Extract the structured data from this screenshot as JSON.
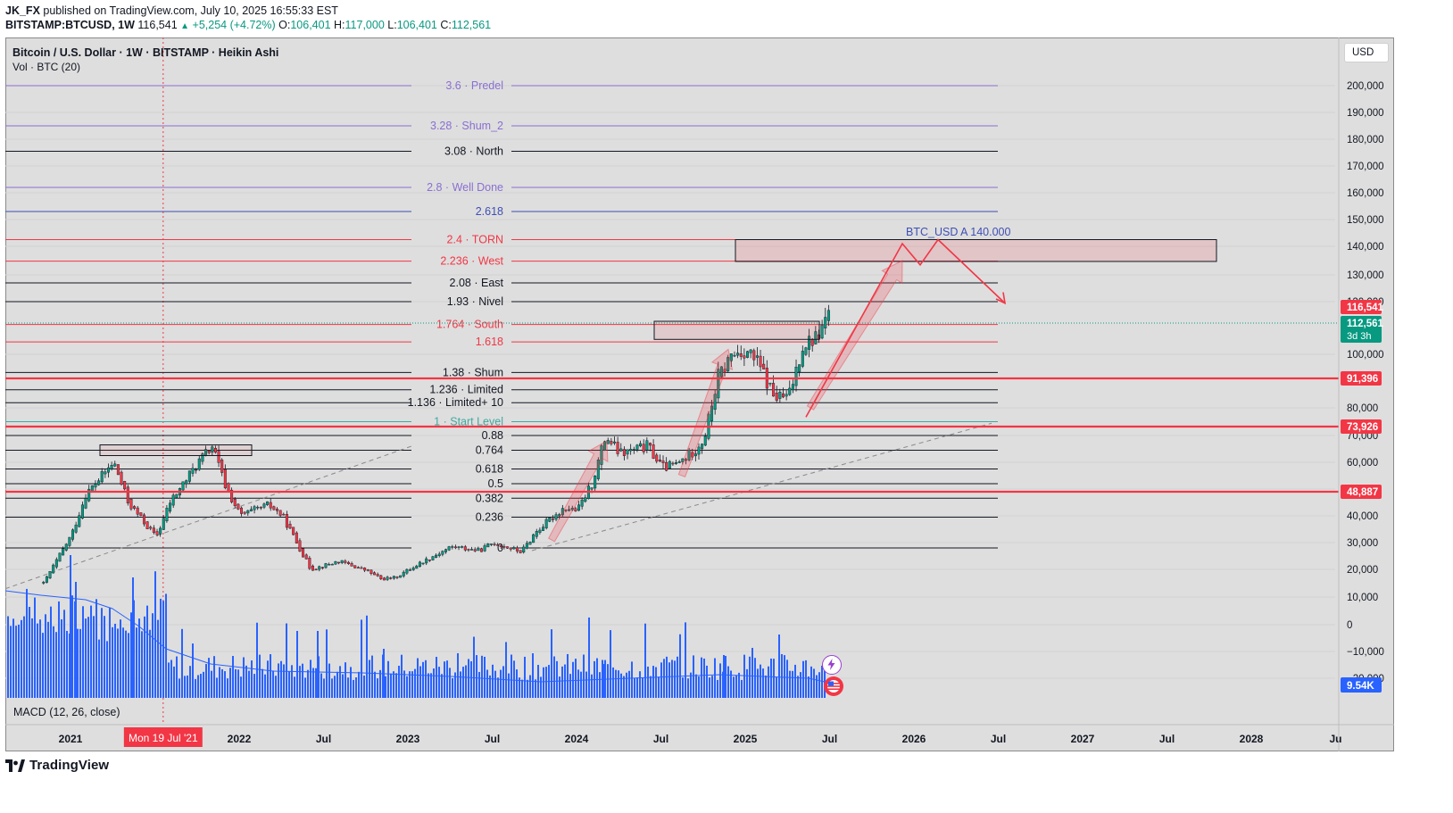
{
  "header": {
    "author": "JK_FX",
    "published": "published on TradingView.com, July 10, 2025 16:55:33 EST",
    "symbol": "BITSTAMP:BTCUSD, 1W",
    "last": "116,541",
    "change": "+5,254 (+4.72%)",
    "o_label": "O:",
    "o": "106,401",
    "h_label": "H:",
    "h": "117,000",
    "l_label": "L:",
    "l": "106,401",
    "c_label": "C:",
    "c": "112,561"
  },
  "legend": {
    "title": "Bitcoin / U.S. Dollar · 1W · BITSTAMP · Heikin Ashi",
    "volume": "Vol · BTC (20)",
    "macd": "MACD (12, 26, close)"
  },
  "currency_button": "USD",
  "footer": {
    "brand": "TradingView"
  },
  "colors": {
    "background": "#dedede",
    "up": "#089981",
    "down": "#f23645",
    "volume": "#2962ff",
    "fib_black": "#131722",
    "fib_red": "#f23645",
    "fib_purple": "#8a6fd1",
    "fib_blue": "#3f4fb5",
    "fib_teal": "#3faaa0"
  },
  "chart_data": {
    "type": "candlestick",
    "timeframe": "1W",
    "style": "Heikin Ashi",
    "y_axis": {
      "unit": "USD",
      "ticks": [
        "200,000",
        "190,000",
        "180,000",
        "170,000",
        "160,000",
        "150,000",
        "140,000",
        "130,000",
        "120,000",
        "100,000",
        "80,000",
        "70,000",
        "60,000",
        "50,000",
        "40,000",
        "30,000",
        "20,000",
        "10,000",
        "0",
        "−10,000",
        "−20,000"
      ],
      "tick_values": [
        200000,
        190000,
        180000,
        170000,
        160000,
        150000,
        140000,
        130000,
        120000,
        100000,
        80000,
        70000,
        60000,
        50000,
        40000,
        30000,
        20000,
        10000,
        0,
        -10000,
        -20000
      ]
    },
    "x_axis": {
      "ticks": [
        "2021",
        "2022",
        "Jul",
        "2023",
        "Jul",
        "2024",
        "Jul",
        "2025",
        "Jul",
        "2026",
        "Jul",
        "2027",
        "Jul",
        "2028",
        "Ju"
      ],
      "tick_dates": [
        "2021-01",
        "2022-01",
        "2022-07",
        "2023-01",
        "2023-07",
        "2024-01",
        "2024-07",
        "2025-01",
        "2025-07",
        "2026-01",
        "2026-07",
        "2027-01",
        "2027-07",
        "2028-01",
        "2028-07"
      ],
      "crosshair_label": "Mon 19 Jul '21",
      "crosshair_date": "2021-07-19"
    },
    "price_badges": [
      {
        "label": "116,541",
        "value": 116541,
        "color": "#f23645"
      },
      {
        "label": "112,561",
        "value": 112561,
        "sub": "3d 3h",
        "color": "#089981"
      },
      {
        "label": "91,396",
        "value": 91396,
        "color": "#f23645"
      },
      {
        "label": "73,926",
        "value": 73926,
        "color": "#f23645"
      },
      {
        "label": "48,887",
        "value": 48887,
        "color": "#f23645"
      }
    ],
    "volume_badge": "9.54K",
    "horizontal_lines": [
      91396,
      73926,
      48887
    ],
    "fib_extension": [
      {
        "level": "3.6 · Predel",
        "price": 200000,
        "color": "#8a6fd1"
      },
      {
        "level": "3.28 · Shum_2",
        "price": 185000,
        "color": "#8a6fd1"
      },
      {
        "level": "3.08 · North",
        "price": 175500,
        "color": "#131722"
      },
      {
        "level": "2.8 · Well Done",
        "price": 162000,
        "color": "#8a6fd1"
      },
      {
        "level": "2.618",
        "price": 153000,
        "color": "#3f4fb5"
      },
      {
        "level": "2.4 · TORN",
        "price": 142500,
        "color": "#f23645"
      },
      {
        "level": "2.236 · West",
        "price": 134800,
        "color": "#f23645"
      },
      {
        "level": "2.08 · East",
        "price": 127000,
        "color": "#131722"
      },
      {
        "level": "1.93 · Nivel",
        "price": 120000,
        "color": "#131722"
      },
      {
        "level": "1.764 · South",
        "price": 112000,
        "color": "#f23645"
      },
      {
        "level": "1.618",
        "price": 105000,
        "color": "#f23645"
      },
      {
        "level": "1.38 · Shum",
        "price": 93500,
        "color": "#131722"
      },
      {
        "level": "1.236 · Limited",
        "price": 87000,
        "color": "#131722"
      },
      {
        "level": "1.136 · Limited+ 10",
        "price": 82000,
        "color": "#131722"
      },
      {
        "level": "1 · Start Level",
        "price": 75500,
        "color": "#3faaa0"
      },
      {
        "level": "0.88",
        "price": 70000,
        "color": "#131722"
      },
      {
        "level": "0.764",
        "price": 64500,
        "color": "#131722"
      },
      {
        "level": "0.618",
        "price": 57500,
        "color": "#131722"
      },
      {
        "level": "0.5",
        "price": 52000,
        "color": "#131722"
      },
      {
        "level": "0.382",
        "price": 46500,
        "color": "#131722"
      },
      {
        "level": "0.236",
        "price": 39500,
        "color": "#131722"
      },
      {
        "level": "0",
        "price": 28000,
        "color": "#131722"
      }
    ],
    "annotation": {
      "text": "BTC_USD A  140.000",
      "target_price": 140000
    },
    "price_path": [
      {
        "date": "2020-11",
        "price": 15000
      },
      {
        "date": "2021-01",
        "price": 33000
      },
      {
        "date": "2021-02",
        "price": 48000
      },
      {
        "date": "2021-04",
        "price": 60000
      },
      {
        "date": "2021-05",
        "price": 45000
      },
      {
        "date": "2021-07",
        "price": 32000
      },
      {
        "date": "2021-08",
        "price": 45000
      },
      {
        "date": "2021-10",
        "price": 60000
      },
      {
        "date": "2021-11",
        "price": 66000
      },
      {
        "date": "2021-12",
        "price": 50000
      },
      {
        "date": "2022-01",
        "price": 40000
      },
      {
        "date": "2022-03",
        "price": 44000
      },
      {
        "date": "2022-04",
        "price": 40000
      },
      {
        "date": "2022-05",
        "price": 30000
      },
      {
        "date": "2022-06",
        "price": 20000
      },
      {
        "date": "2022-08",
        "price": 23000
      },
      {
        "date": "2022-10",
        "price": 19500
      },
      {
        "date": "2022-11",
        "price": 16500
      },
      {
        "date": "2022-12",
        "price": 17000
      },
      {
        "date": "2023-02",
        "price": 23000
      },
      {
        "date": "2023-04",
        "price": 28500
      },
      {
        "date": "2023-06",
        "price": 27000
      },
      {
        "date": "2023-07",
        "price": 30000
      },
      {
        "date": "2023-09",
        "price": 26500
      },
      {
        "date": "2023-10",
        "price": 34000
      },
      {
        "date": "2023-12",
        "price": 43000
      },
      {
        "date": "2024-01",
        "price": 42000
      },
      {
        "date": "2024-02",
        "price": 52000
      },
      {
        "date": "2024-03",
        "price": 70000
      },
      {
        "date": "2024-04",
        "price": 63000
      },
      {
        "date": "2024-06",
        "price": 66000
      },
      {
        "date": "2024-07",
        "price": 58000
      },
      {
        "date": "2024-08",
        "price": 59000
      },
      {
        "date": "2024-09",
        "price": 63000
      },
      {
        "date": "2024-10",
        "price": 69000
      },
      {
        "date": "2024-11",
        "price": 92000
      },
      {
        "date": "2024-12",
        "price": 100000
      },
      {
        "date": "2025-01",
        "price": 102000
      },
      {
        "date": "2025-02",
        "price": 95000
      },
      {
        "date": "2025-03",
        "price": 84000
      },
      {
        "date": "2025-04",
        "price": 84000
      },
      {
        "date": "2025-05",
        "price": 104000
      },
      {
        "date": "2025-06",
        "price": 107000
      },
      {
        "date": "2025-07",
        "price": 116541
      }
    ]
  }
}
